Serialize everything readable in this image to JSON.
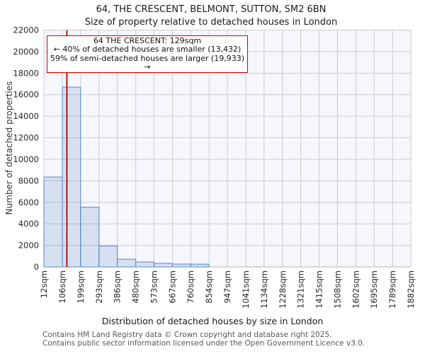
{
  "title": {
    "line1": "64, THE CRESCENT, BELMONT, SUTTON, SM2 6BN",
    "line2": "Size of property relative to detached houses in London"
  },
  "annotation": {
    "line1": "64 THE CRESCENT: 129sqm",
    "line2": "← 40% of detached houses are smaller (13,432)",
    "line3": "59% of semi-detached houses are larger (19,933) →",
    "border_color": "#cc0000"
  },
  "axes": {
    "y_label": "Number of detached properties",
    "x_label": "Distribution of detached houses by size in London",
    "y_tick_labels": [
      "0",
      "2000",
      "4000",
      "6000",
      "8000",
      "10000",
      "12000",
      "14000",
      "16000",
      "18000",
      "20000",
      "22000"
    ],
    "x_tick_labels": [
      "12sqm",
      "106sqm",
      "199sqm",
      "293sqm",
      "386sqm",
      "480sqm",
      "573sqm",
      "667sqm",
      "760sqm",
      "854sqm",
      "947sqm",
      "1041sqm",
      "1134sqm",
      "1228sqm",
      "1321sqm",
      "1415sqm",
      "1508sqm",
      "1602sqm",
      "1695sqm",
      "1789sqm",
      "1882sqm"
    ]
  },
  "footer": {
    "line1": "Contains HM Land Registry data © Crown copyright and database right 2025.",
    "line2": "Contains public sector information licensed under the Open Government Licence v3.0."
  },
  "chart_data": {
    "type": "bar",
    "title": "64, THE CRESCENT, BELMONT, SUTTON, SM2 6BN — Size of property relative to detached houses in London",
    "xlabel": "Distribution of detached houses by size in London",
    "ylabel": "Number of detached properties",
    "bin_edges_sqm": [
      12,
      106,
      199,
      293,
      386,
      480,
      573,
      667,
      760,
      854,
      947,
      1041,
      1134,
      1228,
      1321,
      1415,
      1508,
      1602,
      1695,
      1789,
      1882
    ],
    "values": [
      8350,
      16700,
      5550,
      1950,
      720,
      460,
      330,
      265,
      255,
      45,
      25,
      15,
      10,
      8,
      6,
      4,
      3,
      2,
      2,
      1
    ],
    "marker": {
      "label": "64 THE CRESCENT",
      "value_sqm": 129,
      "color": "#b30000"
    },
    "ylim": [
      0,
      22000
    ],
    "y_tick_step": 2000,
    "grid": true,
    "legend": "none",
    "colors": {
      "bar_fill": "rgba(91,135,197,0.20)",
      "bar_edge": "#5b87c5",
      "plot_bg": "#f5f7fd",
      "grid_color": "#cccccc",
      "axis_color": "#b5b5b5"
    }
  }
}
